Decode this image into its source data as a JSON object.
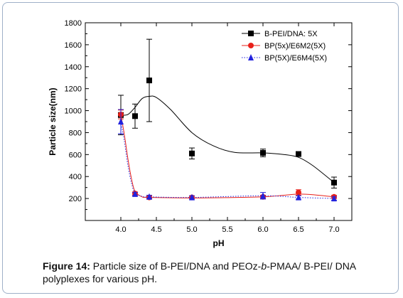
{
  "chart_data": {
    "type": "scatter",
    "title": "",
    "xlabel": "pH",
    "ylabel": "Particle size(nm)",
    "xlim": [
      3.5,
      7.25
    ],
    "ylim": [
      0,
      1800
    ],
    "xticks": [
      "4.0",
      "4.5",
      "5.0",
      "5.5",
      "6.0",
      "6.5",
      "7.0"
    ],
    "yticks": [
      "200",
      "400",
      "600",
      "800",
      "1000",
      "1200",
      "1400",
      "1600",
      "1800"
    ],
    "grid": false,
    "legend_position": "top-right",
    "series": [
      {
        "name": "B-PEI/DNA: 5X",
        "color": "#000000",
        "marker": "square",
        "line_style": "solid",
        "x": [
          4.0,
          4.2,
          4.4,
          5.0,
          6.0,
          6.5,
          7.0
        ],
        "y": [
          960,
          950,
          1275,
          610,
          615,
          605,
          345
        ],
        "error": [
          180,
          110,
          375,
          50,
          35,
          20,
          50
        ],
        "curve_x": [
          4.0,
          4.1,
          4.2,
          4.3,
          4.4,
          4.5,
          4.7,
          5.0,
          5.3,
          5.6,
          6.0,
          6.3,
          6.5,
          6.7,
          7.0
        ],
        "curve_y": [
          960,
          965,
          1030,
          1110,
          1130,
          1120,
          1010,
          800,
          680,
          620,
          615,
          600,
          575,
          500,
          345
        ]
      },
      {
        "name": "BP(5x)/E6M2(5X)",
        "color": "#e8201a",
        "marker": "circle",
        "line_style": "solid",
        "x": [
          4.0,
          4.2,
          4.4,
          5.0,
          6.0,
          6.5,
          7.0
        ],
        "y": [
          965,
          245,
          210,
          210,
          215,
          255,
          215
        ],
        "error": [
          40,
          15,
          15,
          15,
          15,
          25,
          15
        ],
        "curve_x": [
          4.0,
          4.05,
          4.1,
          4.15,
          4.2,
          4.3,
          4.4,
          5.0,
          5.5,
          6.0,
          6.3,
          6.5,
          6.7,
          7.0
        ],
        "curve_y": [
          965,
          780,
          560,
          380,
          265,
          215,
          210,
          205,
          208,
          215,
          230,
          240,
          235,
          215
        ]
      },
      {
        "name": "BP(5X)/E6M4(5X)",
        "color": "#2222dd",
        "marker": "triangle",
        "line_style": "dotted",
        "x": [
          4.0,
          4.2,
          4.4,
          5.0,
          6.0,
          6.5,
          7.0
        ],
        "y": [
          900,
          240,
          215,
          210,
          225,
          210,
          200
        ],
        "error": [
          110,
          15,
          15,
          15,
          30,
          15,
          15
        ],
        "curve_x": [
          4.0,
          4.05,
          4.1,
          4.15,
          4.2,
          4.3,
          4.4,
          5.0,
          6.0,
          6.5,
          7.0
        ],
        "curve_y": [
          900,
          720,
          500,
          340,
          250,
          220,
          215,
          210,
          225,
          210,
          200
        ]
      }
    ]
  },
  "caption": {
    "label": "Figure 14:",
    "text_1": " Particle size of B-PEI/DNA and PEOz-",
    "italic_1": "b",
    "text_2": "-PMAA/ B-PEI/ DNA polyplexes for various pH."
  }
}
